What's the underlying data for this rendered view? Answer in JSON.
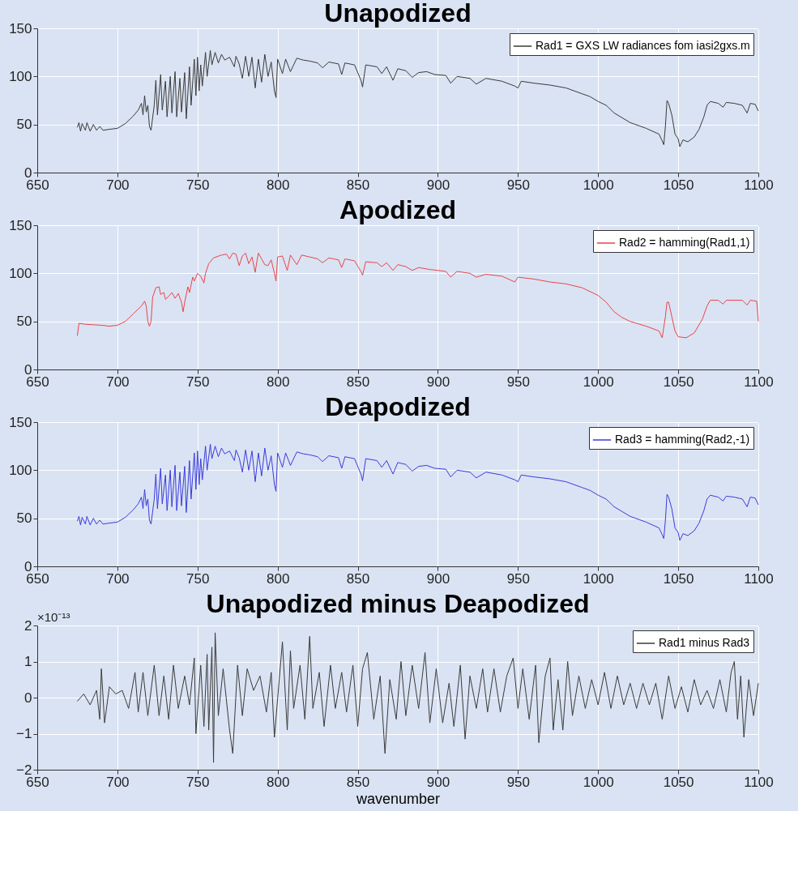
{
  "chart_data": [
    {
      "type": "line",
      "title": "Unapodized",
      "xlim": [
        650,
        1100
      ],
      "xticks": [
        650,
        700,
        750,
        800,
        850,
        900,
        950,
        1000,
        1050,
        1100
      ],
      "ylim": [
        0,
        150
      ],
      "yticks": [
        0,
        50,
        100,
        150
      ],
      "grid": true,
      "legend": "top right",
      "series": [
        {
          "name": "Rad1 = GXS LW radiances fom iasi2gxs.m",
          "color": "#3a3a3a",
          "x": [
            675,
            676,
            677,
            678,
            680,
            681,
            683,
            685,
            687,
            689,
            691,
            695,
            700,
            705,
            710,
            713,
            715,
            716,
            717,
            718,
            719,
            720,
            721,
            723,
            724,
            725,
            727,
            728,
            730,
            731,
            733,
            734,
            736,
            737,
            739,
            740,
            742,
            743,
            745,
            746,
            748,
            749,
            750,
            751,
            752,
            753,
            755,
            756,
            758,
            759,
            761,
            763,
            765,
            767,
            770,
            773,
            774,
            776,
            778,
            780,
            782,
            784,
            786,
            788,
            790,
            792,
            794,
            796,
            798,
            799,
            800,
            803,
            805,
            808,
            812,
            816,
            820,
            825,
            828,
            832,
            838,
            840,
            842,
            848,
            852,
            853,
            855,
            862,
            865,
            868,
            872,
            875,
            880,
            884,
            888,
            893,
            898,
            905,
            908,
            912,
            920,
            924,
            930,
            940,
            948,
            950,
            952,
            960,
            970,
            980,
            990,
            995,
            1000,
            1005,
            1010,
            1015,
            1020,
            1030,
            1038,
            1040,
            1041,
            1042,
            1043,
            1044,
            1046,
            1048,
            1050,
            1051,
            1053,
            1056,
            1060,
            1063,
            1066,
            1068,
            1070,
            1075,
            1078,
            1080,
            1085,
            1090,
            1093,
            1095,
            1098,
            1100
          ],
          "values": [
            47,
            52,
            43,
            51,
            44,
            52,
            43,
            50,
            44,
            48,
            44,
            45,
            46,
            51,
            59,
            65,
            72,
            60,
            80,
            63,
            70,
            48,
            44,
            70,
            96,
            60,
            102,
            65,
            95,
            58,
            100,
            62,
            105,
            58,
            98,
            63,
            104,
            56,
            110,
            70,
            118,
            80,
            120,
            85,
            112,
            90,
            125,
            100,
            127,
            112,
            125,
            114,
            123,
            117,
            120,
            110,
            121,
            113,
            98,
            121,
            100,
            120,
            88,
            118,
            94,
            123,
            100,
            115,
            85,
            78,
            118,
            103,
            118,
            105,
            119,
            117,
            116,
            114,
            109,
            115,
            113,
            102,
            114,
            112,
            96,
            89,
            112,
            110,
            103,
            110,
            96,
            108,
            106,
            99,
            104,
            105,
            102,
            101,
            93,
            100,
            98,
            92,
            98,
            95,
            90,
            88,
            95,
            93,
            91,
            88,
            82,
            79,
            74,
            70,
            62,
            57,
            52,
            46,
            40,
            33,
            29,
            48,
            75,
            72,
            60,
            40,
            35,
            27,
            34,
            32,
            37,
            45,
            58,
            70,
            74,
            72,
            68,
            73,
            72,
            70,
            62,
            72,
            71,
            64
          ]
        }
      ]
    },
    {
      "type": "line",
      "title": "Apodized",
      "xlim": [
        650,
        1100
      ],
      "xticks": [
        650,
        700,
        750,
        800,
        850,
        900,
        950,
        1000,
        1050,
        1100
      ],
      "ylim": [
        0,
        150
      ],
      "yticks": [
        0,
        50,
        100,
        150
      ],
      "grid": true,
      "legend": "top right",
      "series": [
        {
          "name": "Rad2 = hamming(Rad1,1)",
          "color": "#e8454a",
          "x": [
            675,
            676,
            680,
            690,
            695,
            700,
            705,
            710,
            715,
            717,
            718,
            719,
            720,
            721,
            722,
            724,
            726,
            727,
            729,
            730,
            732,
            734,
            736,
            738,
            740,
            741,
            742,
            744,
            745,
            747,
            748,
            750,
            752,
            754,
            755,
            757,
            760,
            765,
            768,
            770,
            772,
            774,
            776,
            778,
            780,
            782,
            784,
            786,
            787,
            788,
            790,
            792,
            794,
            796,
            798,
            799,
            800,
            803,
            806,
            808,
            812,
            815,
            820,
            825,
            828,
            832,
            838,
            840,
            842,
            848,
            852,
            853,
            855,
            862,
            865,
            868,
            872,
            875,
            880,
            884,
            888,
            895,
            905,
            908,
            912,
            920,
            924,
            930,
            940,
            948,
            950,
            960,
            970,
            980,
            990,
            1000,
            1005,
            1010,
            1015,
            1020,
            1030,
            1038,
            1040,
            1042,
            1043,
            1044,
            1046,
            1048,
            1050,
            1055,
            1060,
            1065,
            1068,
            1070,
            1075,
            1078,
            1080,
            1090,
            1093,
            1095,
            1099,
            1100
          ],
          "values": [
            35,
            48,
            47,
            46,
            45,
            46,
            50,
            58,
            66,
            71,
            66,
            50,
            45,
            50,
            75,
            85,
            86,
            78,
            80,
            73,
            76,
            80,
            74,
            79,
            70,
            60,
            70,
            86,
            80,
            96,
            92,
            100,
            97,
            90,
            100,
            110,
            116,
            119,
            120,
            115,
            121,
            120,
            108,
            118,
            121,
            110,
            117,
            101,
            112,
            121,
            115,
            109,
            108,
            114,
            100,
            92,
            117,
            118,
            103,
            119,
            109,
            119,
            117,
            115,
            111,
            116,
            114,
            106,
            115,
            113,
            102,
            98,
            112,
            111,
            107,
            111,
            103,
            109,
            107,
            103,
            106,
            104,
            102,
            96,
            102,
            100,
            96,
            99,
            97,
            91,
            96,
            94,
            91,
            89,
            85,
            77,
            70,
            60,
            54,
            50,
            45,
            40,
            33,
            55,
            70,
            70,
            55,
            40,
            34,
            33,
            38,
            52,
            66,
            72,
            72,
            68,
            72,
            72,
            67,
            72,
            71,
            50
          ]
        }
      ]
    },
    {
      "type": "line",
      "title": "Deapodized",
      "xlim": [
        650,
        1100
      ],
      "xticks": [
        650,
        700,
        750,
        800,
        850,
        900,
        950,
        1000,
        1050,
        1100
      ],
      "ylim": [
        0,
        150
      ],
      "yticks": [
        0,
        50,
        100,
        150
      ],
      "grid": true,
      "legend": "top right",
      "series": [
        {
          "name": "Rad3 = hamming(Rad2,-1)",
          "color": "#3b3bdc",
          "x": [
            675,
            676,
            677,
            678,
            680,
            681,
            683,
            685,
            687,
            689,
            691,
            695,
            700,
            705,
            710,
            713,
            715,
            716,
            717,
            718,
            719,
            720,
            721,
            723,
            724,
            725,
            727,
            728,
            730,
            731,
            733,
            734,
            736,
            737,
            739,
            740,
            742,
            743,
            745,
            746,
            748,
            749,
            750,
            751,
            752,
            753,
            755,
            756,
            758,
            759,
            761,
            763,
            765,
            767,
            770,
            773,
            774,
            776,
            778,
            780,
            782,
            784,
            786,
            788,
            790,
            792,
            794,
            796,
            798,
            799,
            800,
            803,
            805,
            808,
            812,
            816,
            820,
            825,
            828,
            832,
            838,
            840,
            842,
            848,
            852,
            853,
            855,
            862,
            865,
            868,
            872,
            875,
            880,
            884,
            888,
            893,
            898,
            905,
            908,
            912,
            920,
            924,
            930,
            940,
            948,
            950,
            952,
            960,
            970,
            980,
            990,
            995,
            1000,
            1005,
            1010,
            1015,
            1020,
            1030,
            1038,
            1040,
            1041,
            1042,
            1043,
            1044,
            1046,
            1048,
            1050,
            1051,
            1053,
            1056,
            1060,
            1063,
            1066,
            1068,
            1070,
            1075,
            1078,
            1080,
            1085,
            1090,
            1093,
            1095,
            1098,
            1100
          ],
          "values": [
            47,
            52,
            43,
            51,
            44,
            52,
            43,
            50,
            44,
            48,
            44,
            45,
            46,
            51,
            59,
            65,
            72,
            60,
            80,
            63,
            70,
            48,
            44,
            70,
            96,
            60,
            102,
            65,
            95,
            58,
            100,
            62,
            105,
            58,
            98,
            63,
            104,
            56,
            110,
            70,
            118,
            80,
            120,
            85,
            112,
            90,
            125,
            100,
            127,
            112,
            125,
            114,
            123,
            117,
            120,
            110,
            121,
            113,
            98,
            121,
            100,
            120,
            88,
            118,
            94,
            123,
            100,
            115,
            85,
            78,
            118,
            103,
            118,
            105,
            119,
            117,
            116,
            114,
            109,
            115,
            113,
            102,
            114,
            112,
            96,
            89,
            112,
            110,
            103,
            110,
            96,
            108,
            106,
            99,
            104,
            105,
            102,
            101,
            93,
            100,
            98,
            92,
            98,
            95,
            90,
            88,
            95,
            93,
            91,
            88,
            82,
            79,
            74,
            70,
            62,
            57,
            52,
            46,
            40,
            33,
            29,
            48,
            75,
            72,
            60,
            40,
            35,
            27,
            34,
            32,
            37,
            45,
            58,
            70,
            74,
            72,
            68,
            73,
            72,
            70,
            62,
            72,
            71,
            64
          ]
        }
      ]
    },
    {
      "type": "line",
      "title": "Unapodized minus Deapodized",
      "xlabel": "wavenumber",
      "annotations": [
        "×10⁻¹³"
      ],
      "xlim": [
        650,
        1100
      ],
      "xticks": [
        650,
        700,
        750,
        800,
        850,
        900,
        950,
        1000,
        1050,
        1100
      ],
      "ylim": [
        -2,
        2
      ],
      "yticks": [
        -2,
        -1,
        0,
        1,
        2
      ],
      "grid": true,
      "legend": "top right",
      "series": [
        {
          "name": "Rad1 minus Rad3",
          "color": "#3a3a3a",
          "x": [
            675,
            679,
            683,
            687,
            689,
            690,
            692,
            695,
            699,
            703,
            707,
            711,
            713,
            716,
            719,
            723,
            726,
            729,
            732,
            735,
            738,
            742,
            745,
            748,
            749,
            752,
            754,
            756,
            757,
            759,
            760,
            761,
            763,
            766,
            770,
            772,
            775,
            778,
            781,
            785,
            789,
            793,
            796,
            798,
            801,
            803,
            806,
            808,
            810,
            814,
            817,
            820,
            822,
            826,
            829,
            833,
            836,
            840,
            843,
            847,
            850,
            853,
            856,
            860,
            864,
            867,
            870,
            874,
            877,
            880,
            884,
            888,
            892,
            895,
            899,
            903,
            907,
            910,
            914,
            917,
            920,
            924,
            928,
            931,
            935,
            939,
            943,
            947,
            950,
            953,
            957,
            961,
            963,
            967,
            970,
            972,
            975,
            978,
            981,
            984,
            988,
            992,
            996,
            1000,
            1004,
            1008,
            1012,
            1016,
            1020,
            1024,
            1028,
            1032,
            1036,
            1040,
            1044,
            1048,
            1052,
            1056,
            1060,
            1064,
            1068,
            1072,
            1076,
            1080,
            1083,
            1085,
            1087,
            1089,
            1091,
            1094,
            1097,
            1100
          ],
          "values": [
            -0.1,
            0.1,
            -0.2,
            0.2,
            -0.6,
            0.8,
            -0.7,
            0.3,
            0.1,
            0.2,
            -0.3,
            0.7,
            -0.4,
            0.7,
            -0.5,
            0.9,
            -0.5,
            0.6,
            -0.6,
            0.9,
            -0.3,
            0.6,
            -0.2,
            1.1,
            -1.0,
            0.9,
            -0.8,
            1.2,
            -0.9,
            1.4,
            -1.8,
            1.8,
            -0.5,
            0.8,
            -0.9,
            -1.55,
            0.9,
            -0.5,
            0.8,
            0.2,
            0.6,
            -0.4,
            0.7,
            -1.1,
            0.5,
            1.55,
            -0.9,
            1.3,
            -0.3,
            0.9,
            -0.6,
            1.7,
            -0.3,
            0.7,
            -0.8,
            0.9,
            -0.3,
            0.7,
            -0.4,
            0.9,
            -0.8,
            0.8,
            1.25,
            -0.6,
            0.6,
            -1.55,
            0.5,
            -0.6,
            1.0,
            -0.5,
            0.9,
            -0.3,
            1.25,
            -0.7,
            0.8,
            -0.7,
            0.4,
            -0.8,
            0.9,
            -1.15,
            0.6,
            -0.3,
            0.8,
            -0.4,
            0.8,
            -0.4,
            0.6,
            1.1,
            -0.3,
            0.8,
            -0.6,
            0.9,
            -1.25,
            0.6,
            1.1,
            -0.9,
            0.5,
            -0.9,
            1.0,
            -0.5,
            0.6,
            -0.3,
            0.5,
            -0.2,
            0.7,
            -0.3,
            0.6,
            -0.2,
            0.4,
            -0.3,
            0.4,
            -0.2,
            0.4,
            -0.6,
            0.6,
            -0.3,
            0.3,
            -0.4,
            0.5,
            -0.2,
            0.2,
            -0.3,
            0.5,
            -0.4,
            0.7,
            1.0,
            -0.6,
            0.6,
            -1.1,
            0.5,
            -0.5,
            0.4
          ]
        }
      ]
    }
  ]
}
